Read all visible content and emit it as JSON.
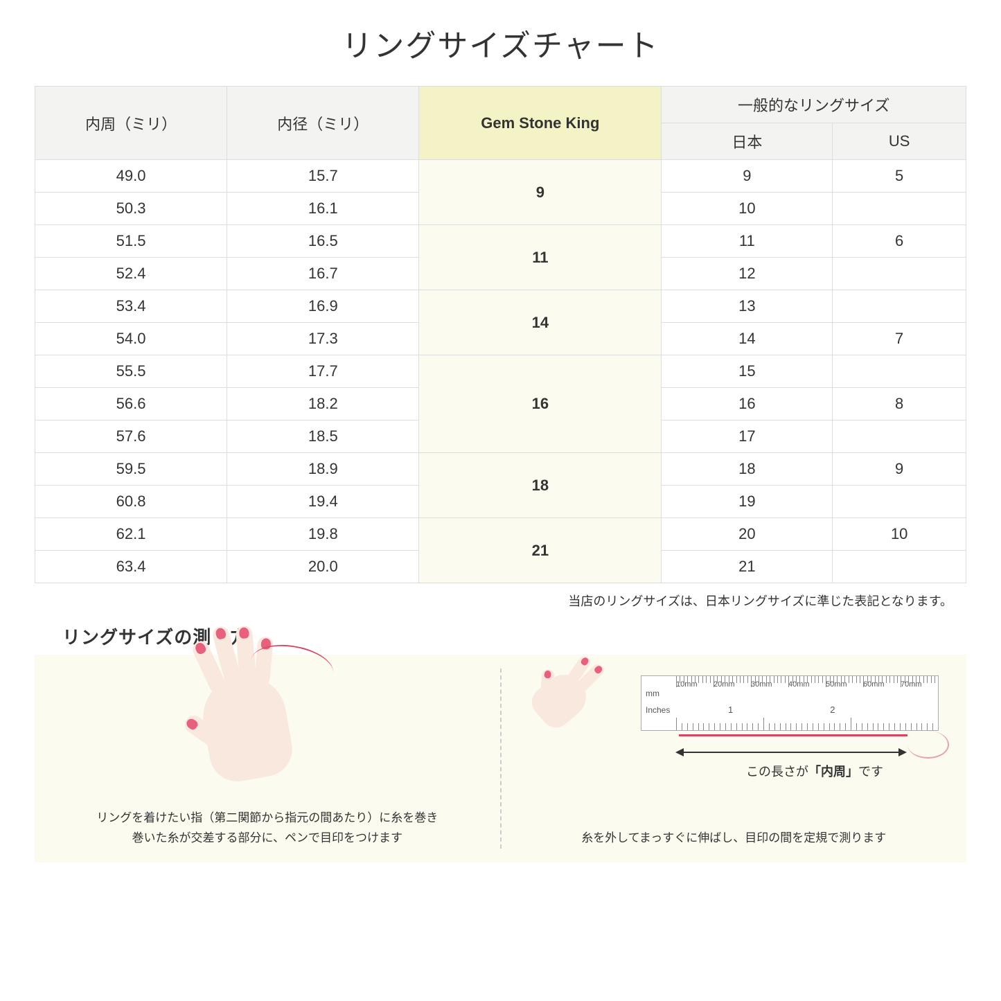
{
  "title": "リングサイズチャート",
  "table": {
    "headers": {
      "circumference": "内周（ミリ）",
      "diameter": "内径（ミリ）",
      "gsk": "Gem Stone King",
      "general_sizes": "一般的なリングサイズ",
      "japan": "日本",
      "us": "US"
    },
    "header_bg": "#f3f3f1",
    "gsk_header_bg": "#f4f3c6",
    "gsk_cell_bg": "#fbfbef",
    "border_color": "#dddddd",
    "rows": [
      {
        "circ": "49.0",
        "dia": "15.7",
        "jp": "9",
        "us": "5"
      },
      {
        "circ": "50.3",
        "dia": "16.1",
        "jp": "10",
        "us": ""
      },
      {
        "circ": "51.5",
        "dia": "16.5",
        "jp": "11",
        "us": "6"
      },
      {
        "circ": "52.4",
        "dia": "16.7",
        "jp": "12",
        "us": ""
      },
      {
        "circ": "53.4",
        "dia": "16.9",
        "jp": "13",
        "us": ""
      },
      {
        "circ": "54.0",
        "dia": "17.3",
        "jp": "14",
        "us": "7"
      },
      {
        "circ": "55.5",
        "dia": "17.7",
        "jp": "15",
        "us": ""
      },
      {
        "circ": "56.6",
        "dia": "18.2",
        "jp": "16",
        "us": "8"
      },
      {
        "circ": "57.6",
        "dia": "18.5",
        "jp": "17",
        "us": ""
      },
      {
        "circ": "59.5",
        "dia": "18.9",
        "jp": "18",
        "us": "9"
      },
      {
        "circ": "60.8",
        "dia": "19.4",
        "jp": "19",
        "us": ""
      },
      {
        "circ": "62.1",
        "dia": "19.8",
        "jp": "20",
        "us": "10"
      },
      {
        "circ": "63.4",
        "dia": "20.0",
        "jp": "21",
        "us": ""
      }
    ],
    "gsk_groups": [
      {
        "value": "9",
        "span": 2
      },
      {
        "value": "11",
        "span": 2
      },
      {
        "value": "14",
        "span": 2
      },
      {
        "value": "16",
        "span": 3
      },
      {
        "value": "18",
        "span": 2
      },
      {
        "value": "21",
        "span": 2
      }
    ]
  },
  "note": "当店のリングサイズは、日本リングサイズに準じた表記となります。",
  "howto": {
    "title": "リングサイズの測り方",
    "panel_bg": "#fbfbef",
    "left_text_line1": "リングを着けたい指（第二関節から指元の間あたり）に糸を巻き",
    "left_text_line2": "巻いた糸が交差する部分に、ペンで目印をつけます",
    "right_arrow_label_pre": "この長さが",
    "right_arrow_label_bold": "「内周」",
    "right_arrow_label_post": "です",
    "right_text": "糸を外してまっすぐに伸ばし、目印の間を定規で測ります",
    "ruler": {
      "mm_label": "mm",
      "in_label": "Inches",
      "mm_marks": [
        "10mm",
        "20mm",
        "30mm",
        "40mm",
        "50mm",
        "60mm",
        "70mm"
      ],
      "in_marks": [
        "1",
        "2"
      ]
    },
    "skin_color": "#f9e8de",
    "nail_color": "#e9607e",
    "thread_color": "#d94560"
  }
}
